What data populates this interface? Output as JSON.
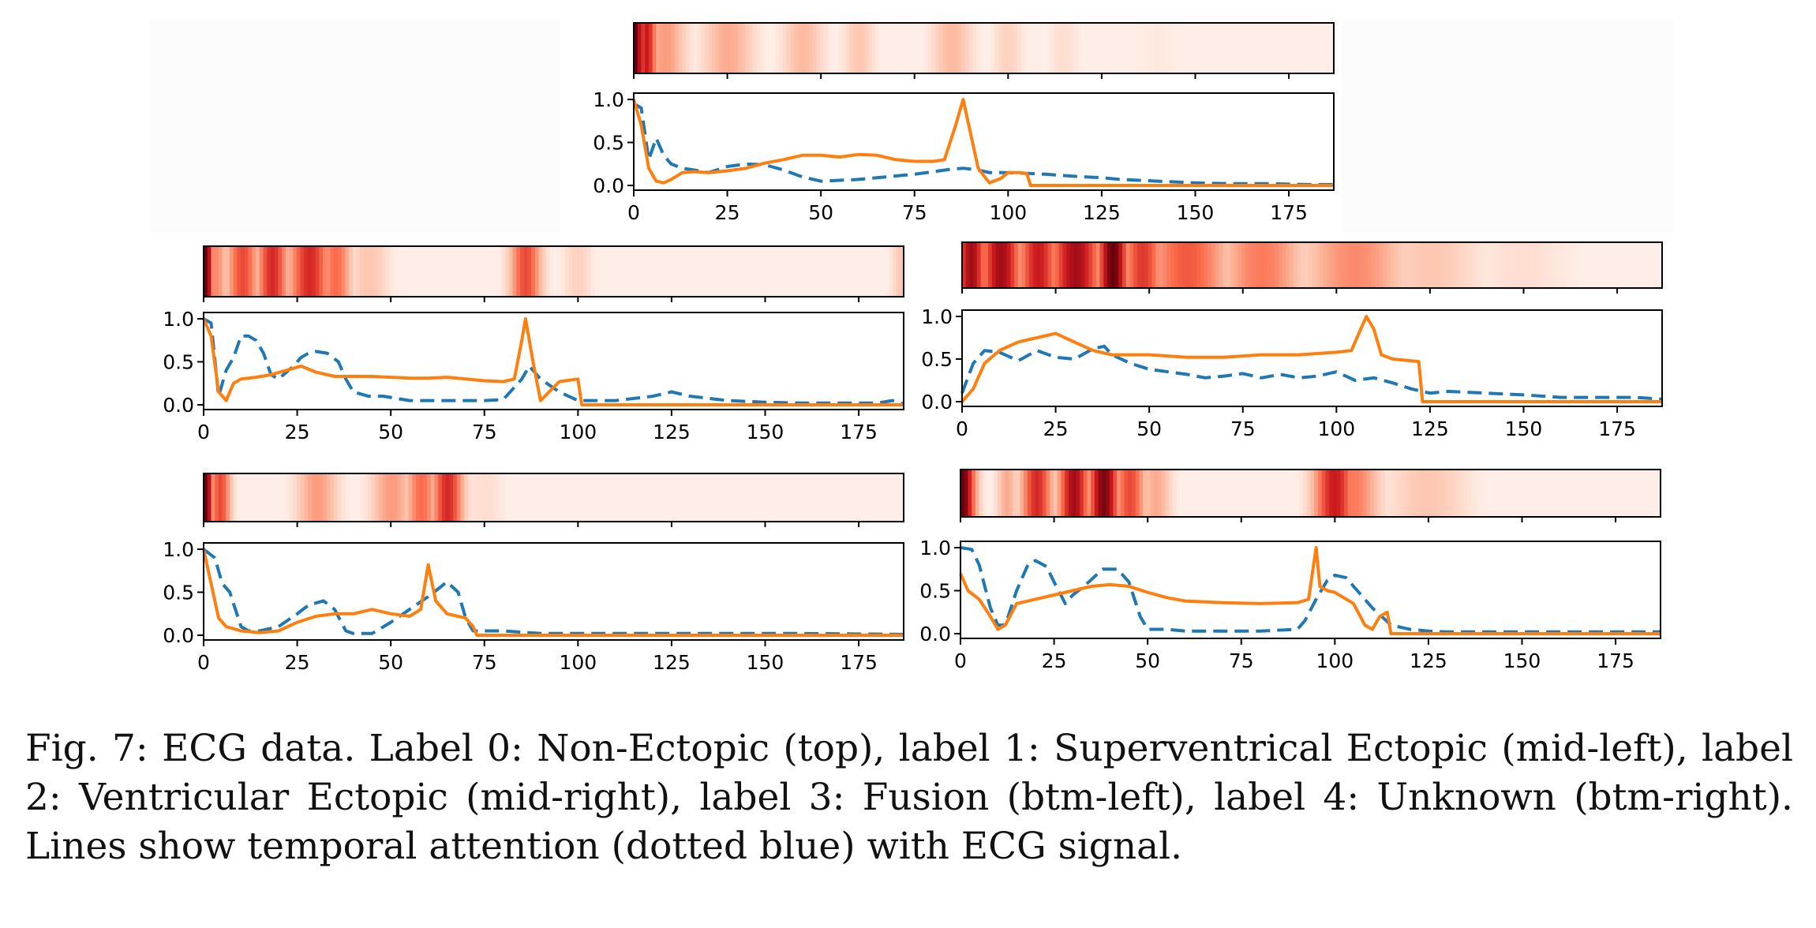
{
  "figure": {
    "caption": "Fig. 7: ECG data. Label 0: Non-Ectopic (top), label 1: Superventrical Ectopic (mid-left), label 2: Ventricular Ectopic (mid-right), label 3: Fusion (btm-left), label 4: Unknown (btm-right). Lines show temporal attention (dotted blue) with ECG signal."
  },
  "colors": {
    "attention_line": "#1f77b4",
    "signal_line": "#ff7f0e",
    "heatmap_low": "#fff5f0",
    "heatmap_high": "#67000d"
  },
  "chart_data": [
    {
      "type": "line",
      "label": "Label 0: Non-Ectopic",
      "xlim": [
        0,
        187
      ],
      "ylim": [
        0,
        1
      ],
      "xticks": [
        0,
        25,
        50,
        75,
        100,
        125,
        150,
        175
      ],
      "yticks": [
        "0.0",
        "0.5",
        "1.0"
      ],
      "series": [
        {
          "role": "attention",
          "style": "dashed",
          "x": [
            0,
            2,
            4,
            6,
            8,
            10,
            13,
            16,
            20,
            25,
            30,
            35,
            40,
            45,
            50,
            55,
            60,
            65,
            70,
            75,
            80,
            85,
            88,
            92,
            95,
            100,
            105,
            110,
            120,
            125,
            130,
            140,
            150,
            160,
            170,
            180,
            187
          ],
          "y": [
            0.95,
            0.9,
            0.3,
            0.55,
            0.35,
            0.25,
            0.2,
            0.18,
            0.15,
            0.22,
            0.25,
            0.24,
            0.18,
            0.1,
            0.05,
            0.06,
            0.07,
            0.09,
            0.11,
            0.13,
            0.16,
            0.19,
            0.2,
            0.18,
            0.15,
            0.15,
            0.14,
            0.13,
            0.1,
            0.09,
            0.07,
            0.05,
            0.03,
            0.02,
            0.02,
            0.01,
            0.01
          ]
        },
        {
          "role": "signal",
          "style": "solid",
          "x": [
            0,
            2,
            4,
            6,
            8,
            10,
            13,
            16,
            20,
            25,
            30,
            35,
            40,
            45,
            50,
            55,
            60,
            65,
            70,
            75,
            80,
            83,
            86,
            88,
            90,
            92,
            95,
            98,
            100,
            103,
            105,
            106,
            110,
            120,
            130,
            140,
            150,
            160,
            170,
            180,
            187
          ],
          "y": [
            1.0,
            0.7,
            0.2,
            0.05,
            0.03,
            0.07,
            0.15,
            0.16,
            0.15,
            0.17,
            0.2,
            0.26,
            0.3,
            0.35,
            0.35,
            0.33,
            0.36,
            0.35,
            0.3,
            0.28,
            0.28,
            0.3,
            0.7,
            1.0,
            0.6,
            0.2,
            0.03,
            0.08,
            0.15,
            0.15,
            0.14,
            0.0,
            0.0,
            0.0,
            0.0,
            0.0,
            0.0,
            0.0,
            0.0,
            0.0,
            0.0
          ]
        }
      ],
      "heatmap_peaks": [
        [
          0,
          1.0,
          1.5
        ],
        [
          3,
          0.75,
          2
        ],
        [
          8,
          0.35,
          4
        ],
        [
          25,
          0.3,
          5
        ],
        [
          45,
          0.25,
          4
        ],
        [
          60,
          0.2,
          3
        ],
        [
          85,
          0.25,
          4
        ],
        [
          100,
          0.15,
          3
        ],
        [
          115,
          0.1,
          3
        ],
        [
          140,
          0.05,
          6
        ]
      ]
    },
    {
      "type": "line",
      "label": "Label 1: Superventrical Ectopic",
      "xlim": [
        0,
        187
      ],
      "ylim": [
        0,
        1
      ],
      "xticks": [
        0,
        25,
        50,
        75,
        100,
        125,
        150,
        175
      ],
      "yticks": [
        "0.0",
        "0.5",
        "1.0"
      ],
      "series": [
        {
          "role": "attention",
          "style": "dashed",
          "x": [
            0,
            2,
            4,
            6,
            8,
            10,
            12,
            14,
            16,
            18,
            20,
            24,
            26,
            28,
            30,
            33,
            36,
            38,
            40,
            44,
            48,
            55,
            60,
            65,
            70,
            75,
            80,
            85,
            87,
            90,
            95,
            100,
            110,
            120,
            125,
            130,
            140,
            150,
            160,
            170,
            180,
            184,
            187
          ],
          "y": [
            1.0,
            0.95,
            0.1,
            0.4,
            0.55,
            0.8,
            0.8,
            0.75,
            0.6,
            0.35,
            0.3,
            0.45,
            0.55,
            0.6,
            0.62,
            0.6,
            0.5,
            0.3,
            0.15,
            0.1,
            0.1,
            0.05,
            0.05,
            0.05,
            0.05,
            0.05,
            0.06,
            0.3,
            0.45,
            0.3,
            0.15,
            0.05,
            0.05,
            0.1,
            0.15,
            0.1,
            0.05,
            0.03,
            0.02,
            0.02,
            0.02,
            0.05,
            0.01
          ]
        },
        {
          "role": "signal",
          "style": "solid",
          "x": [
            0,
            2,
            4,
            6,
            8,
            10,
            14,
            18,
            22,
            26,
            30,
            35,
            40,
            45,
            50,
            55,
            60,
            65,
            70,
            75,
            80,
            83,
            85,
            86,
            88,
            90,
            95,
            100,
            101,
            105,
            120,
            140,
            160,
            187
          ],
          "y": [
            1.0,
            0.8,
            0.15,
            0.05,
            0.25,
            0.3,
            0.32,
            0.35,
            0.4,
            0.45,
            0.38,
            0.33,
            0.33,
            0.33,
            0.32,
            0.31,
            0.31,
            0.32,
            0.3,
            0.28,
            0.27,
            0.3,
            0.75,
            1.0,
            0.5,
            0.05,
            0.27,
            0.3,
            0.0,
            0.0,
            0.0,
            0.0,
            0.0,
            0.0
          ]
        }
      ],
      "heatmap_peaks": [
        [
          0,
          1.0,
          1.5
        ],
        [
          3,
          0.4,
          2
        ],
        [
          10,
          0.6,
          3
        ],
        [
          18,
          0.7,
          3
        ],
        [
          28,
          0.7,
          4
        ],
        [
          35,
          0.5,
          3
        ],
        [
          44,
          0.2,
          4
        ],
        [
          86,
          0.6,
          3
        ],
        [
          100,
          0.15,
          3
        ],
        [
          187,
          0.2,
          2
        ]
      ]
    },
    {
      "type": "line",
      "label": "Label 2: Ventricular Ectopic",
      "xlim": [
        0,
        187
      ],
      "ylim": [
        0,
        1
      ],
      "xticks": [
        0,
        25,
        50,
        75,
        100,
        125,
        150,
        175
      ],
      "yticks": [
        "0.0",
        "0.5",
        "1.0"
      ],
      "series": [
        {
          "role": "attention",
          "style": "dashed",
          "x": [
            0,
            3,
            6,
            10,
            15,
            20,
            25,
            30,
            35,
            38,
            40,
            45,
            50,
            55,
            60,
            65,
            70,
            75,
            80,
            85,
            90,
            95,
            100,
            105,
            110,
            115,
            120,
            125,
            130,
            140,
            150,
            160,
            170,
            180,
            187
          ],
          "y": [
            0.1,
            0.45,
            0.6,
            0.58,
            0.48,
            0.6,
            0.52,
            0.5,
            0.62,
            0.65,
            0.55,
            0.45,
            0.38,
            0.35,
            0.32,
            0.28,
            0.3,
            0.33,
            0.28,
            0.32,
            0.28,
            0.3,
            0.35,
            0.25,
            0.28,
            0.22,
            0.15,
            0.1,
            0.12,
            0.1,
            0.08,
            0.05,
            0.05,
            0.05,
            0.03
          ]
        },
        {
          "role": "signal",
          "style": "solid",
          "x": [
            0,
            3,
            6,
            10,
            15,
            20,
            25,
            30,
            35,
            40,
            50,
            60,
            70,
            80,
            90,
            100,
            104,
            107,
            108,
            110,
            112,
            115,
            120,
            122,
            123,
            125,
            140,
            160,
            187
          ],
          "y": [
            0.0,
            0.15,
            0.45,
            0.6,
            0.7,
            0.75,
            0.8,
            0.7,
            0.6,
            0.55,
            0.55,
            0.52,
            0.52,
            0.55,
            0.55,
            0.58,
            0.6,
            0.9,
            1.0,
            0.85,
            0.55,
            0.5,
            0.48,
            0.47,
            0.0,
            0.0,
            0.0,
            0.0,
            0.0
          ]
        }
      ],
      "heatmap_peaks": [
        [
          2,
          0.85,
          3
        ],
        [
          10,
          0.85,
          4
        ],
        [
          20,
          0.75,
          4
        ],
        [
          30,
          0.85,
          5
        ],
        [
          40,
          1.0,
          3
        ],
        [
          48,
          0.65,
          4
        ],
        [
          60,
          0.55,
          8
        ],
        [
          80,
          0.45,
          8
        ],
        [
          105,
          0.4,
          10
        ],
        [
          125,
          0.2,
          10
        ],
        [
          150,
          0.1,
          10
        ]
      ]
    },
    {
      "type": "line",
      "label": "Label 3: Fusion",
      "xlim": [
        0,
        187
      ],
      "ylim": [
        0,
        1
      ],
      "xticks": [
        0,
        25,
        50,
        75,
        100,
        125,
        150,
        175
      ],
      "yticks": [
        "0.0",
        "0.5",
        "1.0"
      ],
      "series": [
        {
          "role": "attention",
          "style": "dashed",
          "x": [
            0,
            3,
            5,
            7,
            10,
            12,
            15,
            20,
            25,
            28,
            32,
            35,
            38,
            40,
            45,
            50,
            55,
            60,
            63,
            65,
            68,
            70,
            72,
            75,
            80,
            90,
            100,
            120,
            140,
            160,
            187
          ],
          "y": [
            1.0,
            0.9,
            0.6,
            0.5,
            0.1,
            0.05,
            0.05,
            0.1,
            0.25,
            0.35,
            0.4,
            0.3,
            0.05,
            0.02,
            0.02,
            0.15,
            0.3,
            0.45,
            0.55,
            0.62,
            0.5,
            0.2,
            0.05,
            0.05,
            0.05,
            0.02,
            0.02,
            0.02,
            0.02,
            0.02,
            0.01
          ]
        },
        {
          "role": "signal",
          "style": "solid",
          "x": [
            0,
            2,
            4,
            6,
            10,
            15,
            20,
            25,
            30,
            35,
            40,
            45,
            50,
            55,
            58,
            60,
            62,
            65,
            70,
            72,
            73,
            75,
            90,
            120,
            150,
            187
          ],
          "y": [
            1.0,
            0.6,
            0.2,
            0.1,
            0.05,
            0.03,
            0.05,
            0.15,
            0.22,
            0.25,
            0.25,
            0.3,
            0.25,
            0.22,
            0.3,
            0.82,
            0.4,
            0.25,
            0.2,
            0.1,
            0.0,
            0.0,
            0.0,
            0.0,
            0.0,
            0.0
          ]
        }
      ],
      "heatmap_peaks": [
        [
          0,
          1.0,
          1.5
        ],
        [
          4,
          0.6,
          2
        ],
        [
          30,
          0.35,
          4
        ],
        [
          50,
          0.35,
          4
        ],
        [
          58,
          0.5,
          3
        ],
        [
          65,
          0.7,
          3
        ],
        [
          75,
          0.1,
          4
        ]
      ]
    },
    {
      "type": "line",
      "label": "Label 4: Unknown",
      "xlim": [
        0,
        187
      ],
      "ylim": [
        0,
        1
      ],
      "xticks": [
        0,
        25,
        50,
        75,
        100,
        125,
        150,
        175
      ],
      "yticks": [
        "0.0",
        "0.5",
        "1.0"
      ],
      "series": [
        {
          "role": "attention",
          "style": "dashed",
          "x": [
            0,
            3,
            5,
            8,
            10,
            12,
            15,
            18,
            20,
            23,
            25,
            28,
            30,
            33,
            38,
            42,
            45,
            48,
            50,
            55,
            60,
            70,
            80,
            90,
            92,
            95,
            98,
            100,
            103,
            106,
            110,
            115,
            120,
            125,
            130,
            140,
            150,
            160,
            170,
            180,
            187
          ],
          "y": [
            1.0,
            0.98,
            0.8,
            0.3,
            0.1,
            0.1,
            0.5,
            0.8,
            0.85,
            0.78,
            0.6,
            0.35,
            0.45,
            0.55,
            0.75,
            0.75,
            0.6,
            0.2,
            0.05,
            0.05,
            0.03,
            0.03,
            0.03,
            0.05,
            0.15,
            0.4,
            0.62,
            0.68,
            0.65,
            0.5,
            0.3,
            0.1,
            0.05,
            0.03,
            0.02,
            0.02,
            0.02,
            0.02,
            0.02,
            0.02,
            0.02
          ]
        },
        {
          "role": "signal",
          "style": "solid",
          "x": [
            0,
            2,
            5,
            8,
            10,
            12,
            15,
            20,
            25,
            30,
            35,
            40,
            45,
            50,
            55,
            60,
            70,
            80,
            90,
            93,
            95,
            96,
            98,
            100,
            105,
            108,
            110,
            112,
            114,
            115,
            120,
            140,
            160,
            187
          ],
          "y": [
            0.7,
            0.5,
            0.4,
            0.2,
            0.05,
            0.1,
            0.35,
            0.4,
            0.45,
            0.5,
            0.55,
            0.57,
            0.55,
            0.48,
            0.42,
            0.38,
            0.36,
            0.35,
            0.36,
            0.4,
            1.0,
            0.55,
            0.5,
            0.48,
            0.35,
            0.1,
            0.05,
            0.2,
            0.25,
            0.0,
            0.0,
            0.0,
            0.0,
            0.0
          ]
        }
      ],
      "heatmap_peaks": [
        [
          0,
          1.0,
          2.5
        ],
        [
          12,
          0.3,
          2
        ],
        [
          20,
          0.7,
          3
        ],
        [
          30,
          0.85,
          3
        ],
        [
          38,
          0.95,
          3
        ],
        [
          45,
          0.6,
          3
        ],
        [
          52,
          0.3,
          3
        ],
        [
          100,
          0.75,
          4
        ],
        [
          105,
          0.45,
          5
        ],
        [
          125,
          0.2,
          8
        ]
      ]
    }
  ]
}
